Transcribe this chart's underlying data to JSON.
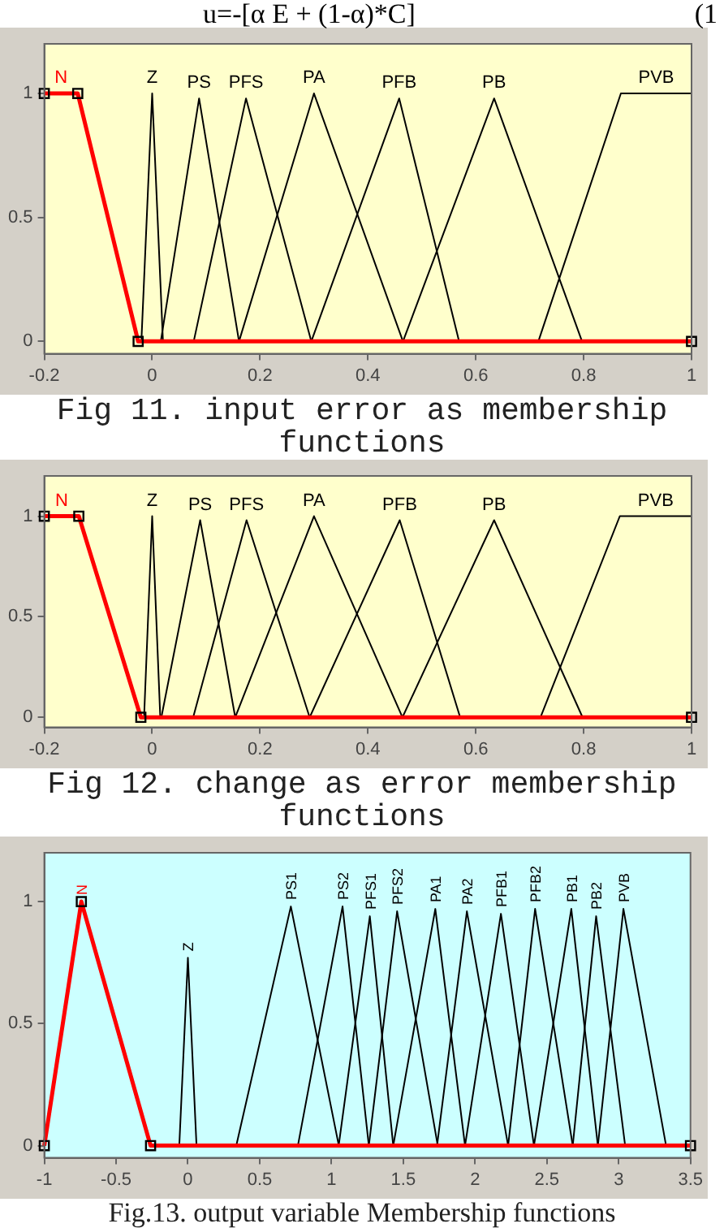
{
  "chart_data": [
    {
      "type": "line",
      "annotations": [
        "u=-[α E + (1-α)*C]",
        "(1",
        "Fig 11. input error as membership functions"
      ],
      "xlim": [
        -0.2,
        1
      ],
      "xticks": [
        -0.2,
        0,
        0.2,
        0.4,
        0.6,
        0.8,
        1
      ],
      "ylim": [
        -0.05,
        1.2
      ],
      "yticks": [
        0,
        0.5,
        1
      ],
      "legend": false,
      "series": [
        {
          "name": "Z",
          "color": "#000000",
          "x": [
            -0.02,
            0,
            0.02
          ],
          "values": [
            0,
            1,
            0
          ]
        },
        {
          "name": "PS",
          "color": "#000000",
          "x": [
            0.016,
            0.087,
            0.161
          ],
          "values": [
            0,
            0.98,
            0
          ]
        },
        {
          "name": "PFS",
          "color": "#000000",
          "x": [
            0.077,
            0.174,
            0.295
          ],
          "values": [
            0,
            0.98,
            0
          ]
        },
        {
          "name": "PA",
          "color": "#000000",
          "x": [
            0.161,
            0.3,
            0.465
          ],
          "values": [
            0,
            1,
            0
          ]
        },
        {
          "name": "PFB",
          "color": "#000000",
          "x": [
            0.295,
            0.458,
            0.569
          ],
          "values": [
            0,
            0.98,
            0
          ]
        },
        {
          "name": "PB",
          "color": "#000000",
          "x": [
            0.465,
            0.634,
            0.797
          ],
          "values": [
            0,
            0.98,
            0
          ]
        },
        {
          "name": "PVB",
          "color": "#000000",
          "x": [
            0.716,
            0.869,
            1
          ],
          "values": [
            0,
            1,
            1
          ]
        },
        {
          "name": "N",
          "color": "#ff0000",
          "marker": "square",
          "x": [
            -0.2,
            -0.138,
            -0.026,
            1
          ],
          "values": [
            1,
            1,
            0,
            0
          ]
        }
      ]
    },
    {
      "type": "line",
      "annotations": [
        "Fig 12. change as error membership functions"
      ],
      "xlim": [
        -0.2,
        1
      ],
      "xticks": [
        -0.2,
        0,
        0.2,
        0.4,
        0.6,
        0.8,
        1
      ],
      "ylim": [
        -0.05,
        1.2
      ],
      "yticks": [
        0,
        0.5,
        1
      ],
      "legend": false,
      "series": [
        {
          "name": "Z",
          "color": "#000000",
          "x": [
            -0.015,
            0,
            0.015
          ],
          "values": [
            0,
            1,
            0
          ]
        },
        {
          "name": "PS",
          "color": "#000000",
          "x": [
            0.017,
            0.089,
            0.154
          ],
          "values": [
            0,
            0.98,
            0
          ]
        },
        {
          "name": "PFS",
          "color": "#000000",
          "x": [
            0.076,
            0.175,
            0.292
          ],
          "values": [
            0,
            0.98,
            0
          ]
        },
        {
          "name": "PA",
          "color": "#000000",
          "x": [
            0.154,
            0.3,
            0.464
          ],
          "values": [
            0,
            1,
            0
          ]
        },
        {
          "name": "PFB",
          "color": "#000000",
          "x": [
            0.292,
            0.459,
            0.571
          ],
          "values": [
            0,
            0.98,
            0
          ]
        },
        {
          "name": "PB",
          "color": "#000000",
          "x": [
            0.464,
            0.634,
            0.798
          ],
          "values": [
            0,
            0.98,
            0
          ]
        },
        {
          "name": "PVB",
          "color": "#000000",
          "x": [
            0.72,
            0.867,
            1
          ],
          "values": [
            0,
            1,
            1
          ]
        },
        {
          "name": "N",
          "color": "#ff0000",
          "marker": "square",
          "x": [
            -0.2,
            -0.136,
            -0.021,
            1
          ],
          "values": [
            1,
            1,
            0,
            0
          ]
        }
      ]
    },
    {
      "type": "line",
      "annotations": [
        "Fig.13. output variable Membership functions"
      ],
      "xlim": [
        -1,
        3.5
      ],
      "xticks": [
        -1,
        -0.5,
        0,
        0.5,
        1,
        1.5,
        2,
        2.5,
        3,
        3.5
      ],
      "ylim": [
        -0.05,
        1.2
      ],
      "yticks": [
        0,
        0.5,
        1
      ],
      "legend": false,
      "series": [
        {
          "name": "Z",
          "color": "#000000",
          "x": [
            -0.06,
            0,
            0.06
          ],
          "values": [
            0,
            0.77,
            0
          ]
        },
        {
          "name": "PS1",
          "color": "#000000",
          "x": [
            0.337,
            0.717,
            1.051
          ],
          "values": [
            0,
            0.98,
            0
          ]
        },
        {
          "name": "PS2",
          "color": "#000000",
          "x": [
            0.766,
            1.077,
            1.26
          ],
          "values": [
            0,
            0.98,
            0
          ]
        },
        {
          "name": "PFS1",
          "color": "#000000",
          "x": [
            1.05,
            1.267,
            1.43
          ],
          "values": [
            0,
            0.94,
            0
          ]
        },
        {
          "name": "PFS2",
          "color": "#000000",
          "x": [
            1.26,
            1.457,
            1.74
          ],
          "values": [
            0,
            0.96,
            0
          ]
        },
        {
          "name": "PA1",
          "color": "#000000",
          "x": [
            1.43,
            1.723,
            1.93
          ],
          "values": [
            0,
            0.97,
            0
          ]
        },
        {
          "name": "PA2",
          "color": "#000000",
          "x": [
            1.735,
            1.943,
            2.23
          ],
          "values": [
            0,
            0.96,
            0
          ]
        },
        {
          "name": "PFB1",
          "color": "#000000",
          "x": [
            1.93,
            2.18,
            2.41
          ],
          "values": [
            0,
            0.95,
            0
          ]
        },
        {
          "name": "PFB2",
          "color": "#000000",
          "x": [
            2.23,
            2.418,
            2.68
          ],
          "values": [
            0,
            0.97,
            0
          ]
        },
        {
          "name": "PB1",
          "color": "#000000",
          "x": [
            2.41,
            2.67,
            2.855
          ],
          "values": [
            0,
            0.97,
            0
          ]
        },
        {
          "name": "PB2",
          "color": "#000000",
          "x": [
            2.68,
            2.843,
            3.045
          ],
          "values": [
            0,
            0.94,
            0
          ]
        },
        {
          "name": "PVB",
          "color": "#000000",
          "x": [
            2.855,
            3.033,
            3.33
          ],
          "values": [
            0,
            0.97,
            0
          ]
        },
        {
          "name": "N",
          "color": "#ff0000",
          "marker": "square",
          "x": [
            -1,
            -0.742,
            -0.26,
            3.5
          ],
          "values": [
            0,
            1,
            0,
            0
          ]
        }
      ]
    }
  ]
}
